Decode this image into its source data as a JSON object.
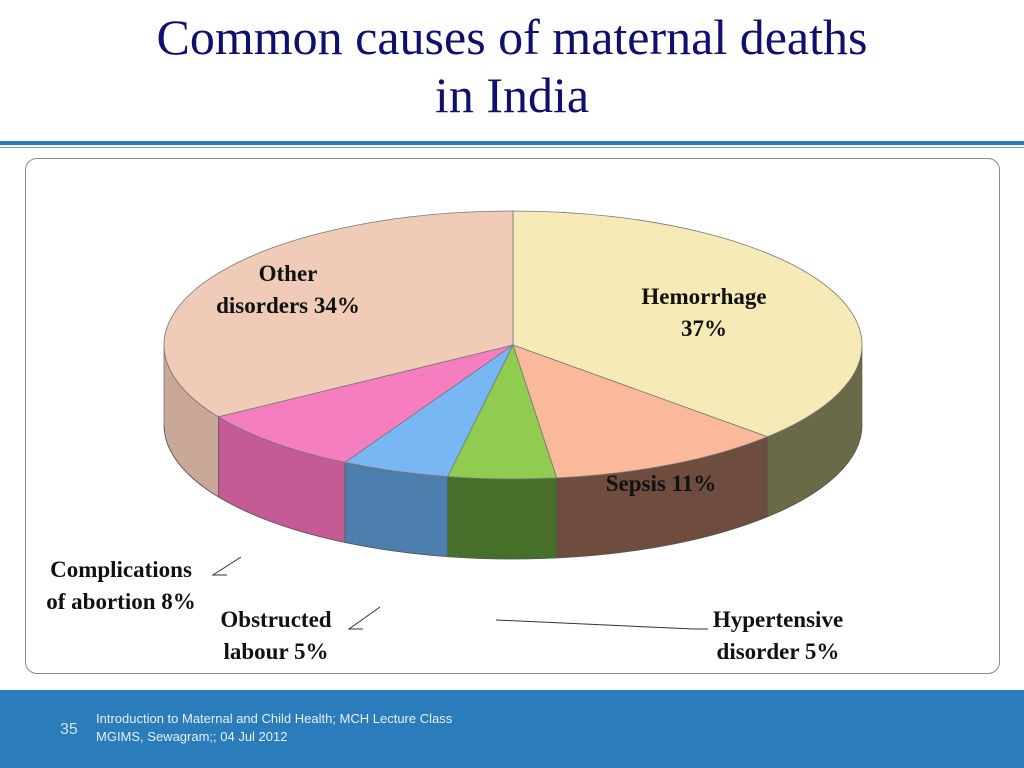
{
  "title": {
    "line1": "Common causes of maternal deaths",
    "line2": "in India"
  },
  "footer": {
    "slide_number": "35",
    "line1": "Introduction to Maternal and Child Health; MCH Lecture Class",
    "line2": "MGIMS, Sewagram;; 04 Jul  2012"
  },
  "chart_data": {
    "type": "pie",
    "style": "3d",
    "slices": [
      {
        "name": "Hemorrhage",
        "value": 37,
        "label_lines": [
          "Hemorrhage",
          "37%"
        ],
        "color": "#f6ebb7",
        "side_color": "#6b6a48"
      },
      {
        "name": "Sepsis",
        "value": 11,
        "label_lines": [
          "Sepsis 11%"
        ],
        "color": "#f9b99a",
        "side_color": "#6e4c3e"
      },
      {
        "name": "Hypertensive disorder",
        "value": 5,
        "label_lines": [
          "Hypertensive",
          "disorder 5%"
        ],
        "color": "#8fcc50",
        "side_color": "#46702a"
      },
      {
        "name": "Obstructed labour",
        "value": 5,
        "label_lines": [
          "Obstructed",
          "labour 5%"
        ],
        "color": "#79b6f4",
        "side_color": "#4d7fae"
      },
      {
        "name": "Complications of abortion",
        "value": 8,
        "label_lines": [
          "Complications",
          "of abortion 8%"
        ],
        "color": "#f47ebf",
        "side_color": "#c55b95"
      },
      {
        "name": "Other disorders",
        "value": 34,
        "label_lines": [
          "Other",
          "disorders 34%"
        ],
        "color": "#efcbb8",
        "side_color": "#c9a898"
      }
    ]
  }
}
